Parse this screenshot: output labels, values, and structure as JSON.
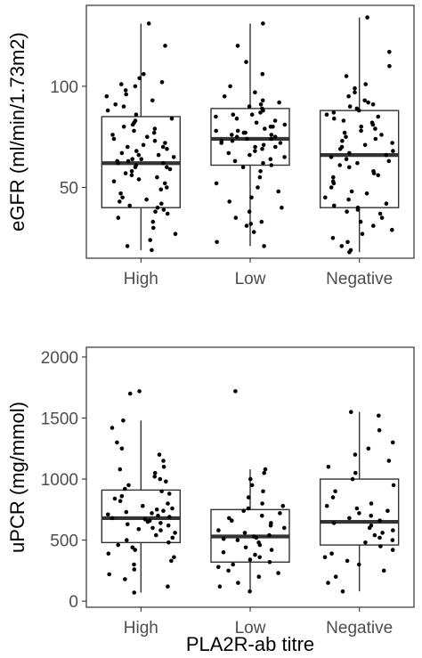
{
  "chart_data": [
    {
      "type": "box",
      "ylabel": "eGFR (ml/min/1.73m2)",
      "xlabel": "",
      "categories": [
        "High",
        "Low",
        "Negative"
      ],
      "yticks": [
        50,
        100
      ],
      "ylim": [
        15,
        140
      ],
      "grid": true,
      "boxes": [
        {
          "name": "High",
          "min": 19,
          "q1": 40,
          "median": 62,
          "q3": 85,
          "max": 131
        },
        {
          "name": "Low",
          "min": 21,
          "q1": 61,
          "median": 74,
          "q3": 89,
          "max": 131
        },
        {
          "name": "Negative",
          "min": 18,
          "q1": 40,
          "median": 66,
          "q3": 88,
          "max": 134
        }
      ],
      "points": [
        [
          19,
          21,
          24,
          27,
          30,
          33,
          35,
          37,
          38,
          39,
          40,
          41,
          42,
          43,
          44,
          45,
          47,
          49,
          50,
          52,
          53,
          54,
          55,
          56,
          57,
          58,
          59,
          60,
          60,
          61,
          62,
          62,
          63,
          63,
          64,
          64,
          65,
          66,
          66,
          67,
          68,
          69,
          70,
          70,
          71,
          72,
          73,
          74,
          75,
          76,
          77,
          78,
          79,
          80,
          81,
          82,
          83,
          84,
          86,
          88,
          90,
          91,
          93,
          95,
          96,
          98,
          100,
          101,
          102,
          104,
          106,
          120,
          131
        ],
        [
          21,
          23,
          28,
          31,
          32,
          33,
          35,
          38,
          40,
          43,
          45,
          48,
          50,
          52,
          55,
          58,
          60,
          61,
          62,
          63,
          64,
          65,
          66,
          67,
          68,
          69,
          70,
          70,
          71,
          72,
          72,
          73,
          73,
          74,
          74,
          75,
          75,
          76,
          76,
          77,
          77,
          78,
          78,
          79,
          80,
          80,
          81,
          82,
          83,
          84,
          85,
          86,
          86,
          87,
          88,
          89,
          90,
          91,
          92,
          93,
          95,
          97,
          100,
          106,
          112,
          120,
          131
        ],
        [
          18,
          19,
          21,
          23,
          25,
          27,
          29,
          31,
          33,
          35,
          37,
          38,
          39,
          40,
          41,
          42,
          44,
          45,
          47,
          48,
          50,
          52,
          53,
          55,
          56,
          57,
          58,
          60,
          61,
          62,
          63,
          64,
          65,
          66,
          67,
          68,
          69,
          70,
          71,
          72,
          73,
          74,
          75,
          76,
          77,
          78,
          79,
          80,
          81,
          82,
          83,
          84,
          85,
          86,
          87,
          88,
          89,
          90,
          91,
          92,
          93,
          95,
          97,
          99,
          101,
          105,
          110,
          117,
          134
        ]
      ]
    },
    {
      "type": "box",
      "ylabel": "uPCR (mg/mmol)",
      "xlabel": "PLA2R-ab titre",
      "categories": [
        "High",
        "Low",
        "Negative"
      ],
      "yticks": [
        0,
        500,
        1000,
        1500,
        2000
      ],
      "ylim": [
        -50,
        2080
      ],
      "grid": true,
      "boxes": [
        {
          "name": "High",
          "min": 70,
          "q1": 480,
          "median": 680,
          "q3": 910,
          "max": 1480
        },
        {
          "name": "Low",
          "min": 80,
          "q1": 320,
          "median": 530,
          "q3": 750,
          "max": 1080
        },
        {
          "name": "Negative",
          "min": 80,
          "q1": 460,
          "median": 650,
          "q3": 1000,
          "max": 1550
        }
      ],
      "points": [
        [
          70,
          120,
          180,
          220,
          260,
          300,
          330,
          360,
          390,
          420,
          440,
          460,
          480,
          500,
          520,
          540,
          560,
          580,
          590,
          600,
          620,
          630,
          640,
          650,
          660,
          670,
          680,
          690,
          700,
          710,
          720,
          730,
          740,
          750,
          760,
          780,
          800,
          820,
          840,
          860,
          880,
          900,
          920,
          950,
          980,
          1000,
          1020,
          1050,
          1080,
          1100,
          1150,
          1200,
          1250,
          1300,
          1420,
          1480,
          1700,
          1720
        ],
        [
          80,
          120,
          150,
          200,
          230,
          250,
          280,
          300,
          320,
          340,
          360,
          380,
          400,
          420,
          440,
          460,
          480,
          500,
          510,
          520,
          530,
          540,
          560,
          580,
          600,
          620,
          640,
          660,
          680,
          700,
          720,
          740,
          760,
          780,
          800,
          850,
          900,
          950,
          1000,
          1050,
          1080,
          1720
        ],
        [
          80,
          150,
          200,
          250,
          300,
          330,
          360,
          390,
          420,
          450,
          480,
          500,
          520,
          540,
          560,
          580,
          600,
          620,
          640,
          660,
          680,
          700,
          720,
          740,
          760,
          780,
          800,
          850,
          900,
          950,
          1000,
          1050,
          1100,
          1150,
          1200,
          1250,
          1300,
          1400,
          1520,
          1550
        ]
      ]
    }
  ]
}
